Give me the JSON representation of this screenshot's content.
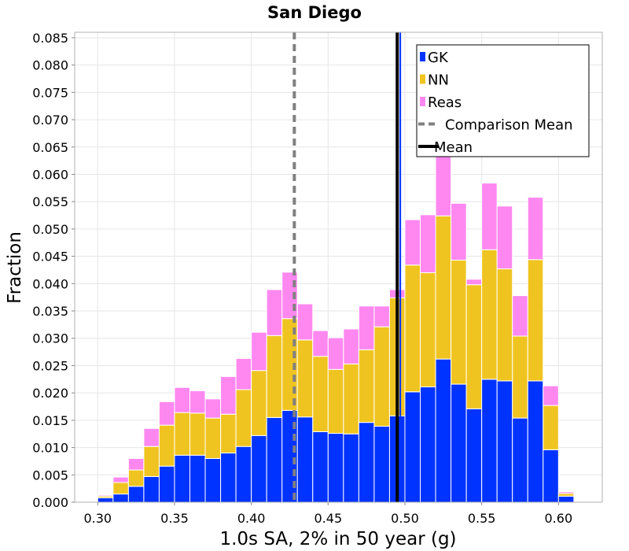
{
  "chart_data": {
    "type": "bar",
    "stacked": true,
    "title": "San Diego",
    "xlabel": "1.0s SA, 2% in 50 year (g)",
    "ylabel": "Fraction",
    "xlim": [
      0.285,
      0.6285
    ],
    "ylim": [
      0,
      0.086
    ],
    "bin_width": 0.01,
    "x_ticks": [
      "0.30",
      "0.35",
      "0.40",
      "0.45",
      "0.50",
      "0.55",
      "0.60"
    ],
    "y_ticks": [
      "0.000",
      "0.005",
      "0.010",
      "0.015",
      "0.020",
      "0.025",
      "0.030",
      "0.035",
      "0.040",
      "0.045",
      "0.050",
      "0.055",
      "0.060",
      "0.065",
      "0.070",
      "0.075",
      "0.080",
      "0.085"
    ],
    "bin_centers": [
      0.295,
      0.305,
      0.315,
      0.325,
      0.335,
      0.345,
      0.355,
      0.365,
      0.375,
      0.385,
      0.395,
      0.405,
      0.415,
      0.425,
      0.435,
      0.445,
      0.455,
      0.465,
      0.475,
      0.485,
      0.495,
      0.505,
      0.515,
      0.525,
      0.535,
      0.545,
      0.555,
      0.565,
      0.575,
      0.585,
      0.595,
      0.605,
      0.615
    ],
    "series": [
      {
        "name": "GK",
        "color": "#0033ff",
        "values": [
          0.0001,
          0.0008,
          0.0015,
          0.0029,
          0.0047,
          0.0066,
          0.0086,
          0.0086,
          0.008,
          0.009,
          0.0102,
          0.0122,
          0.0155,
          0.0168,
          0.0156,
          0.0129,
          0.0126,
          0.0125,
          0.0146,
          0.0139,
          0.0158,
          0.0202,
          0.0211,
          0.0262,
          0.0216,
          0.0171,
          0.0225,
          0.0222,
          0.0154,
          0.0222,
          0.0096,
          0.0011,
          0.0001
        ]
      },
      {
        "name": "NN",
        "color": "#f0c420",
        "values": [
          0.0001,
          0.0003,
          0.0021,
          0.003,
          0.0055,
          0.0075,
          0.0078,
          0.0077,
          0.0074,
          0.0071,
          0.0104,
          0.0119,
          0.015,
          0.0168,
          0.0141,
          0.0138,
          0.0117,
          0.0128,
          0.0133,
          0.0182,
          0.0216,
          0.0232,
          0.0209,
          0.0262,
          0.0227,
          0.0227,
          0.0237,
          0.0205,
          0.015,
          0.0222,
          0.0081,
          0.0005,
          0.0
        ]
      },
      {
        "name": "Reas",
        "color": "#ff88f0",
        "values": [
          0.0,
          0.0002,
          0.001,
          0.0021,
          0.0033,
          0.0043,
          0.0046,
          0.0041,
          0.0035,
          0.0069,
          0.0057,
          0.007,
          0.0084,
          0.0085,
          0.0066,
          0.0047,
          0.0058,
          0.0064,
          0.008,
          0.0038,
          0.0015,
          0.0083,
          0.0106,
          0.013,
          0.0104,
          0.001,
          0.0122,
          0.0115,
          0.0074,
          0.0114,
          0.0036,
          0.0003,
          0.0
        ]
      }
    ],
    "lines": [
      {
        "name": "Comparison Mean",
        "x": 0.428,
        "style": "dashed",
        "color": "#808080"
      },
      {
        "name": "Mean",
        "x": 0.495,
        "style": "solid",
        "color": "#000000"
      },
      {
        "name": "GK Mean",
        "x": 0.497,
        "style": "solid",
        "color": "#0033ff"
      }
    ],
    "legend": {
      "position": "top-right",
      "entries": [
        {
          "label": "GK",
          "kind": "patch",
          "color": "#0033ff"
        },
        {
          "label": "NN",
          "kind": "patch",
          "color": "#f0c420"
        },
        {
          "label": "Reas",
          "kind": "patch",
          "color": "#ff88f0"
        },
        {
          "label": "Comparison Mean",
          "kind": "dashed",
          "color": "#808080"
        },
        {
          "label": "Mean",
          "kind": "solid",
          "color": "#000000"
        }
      ]
    },
    "grid": true
  }
}
